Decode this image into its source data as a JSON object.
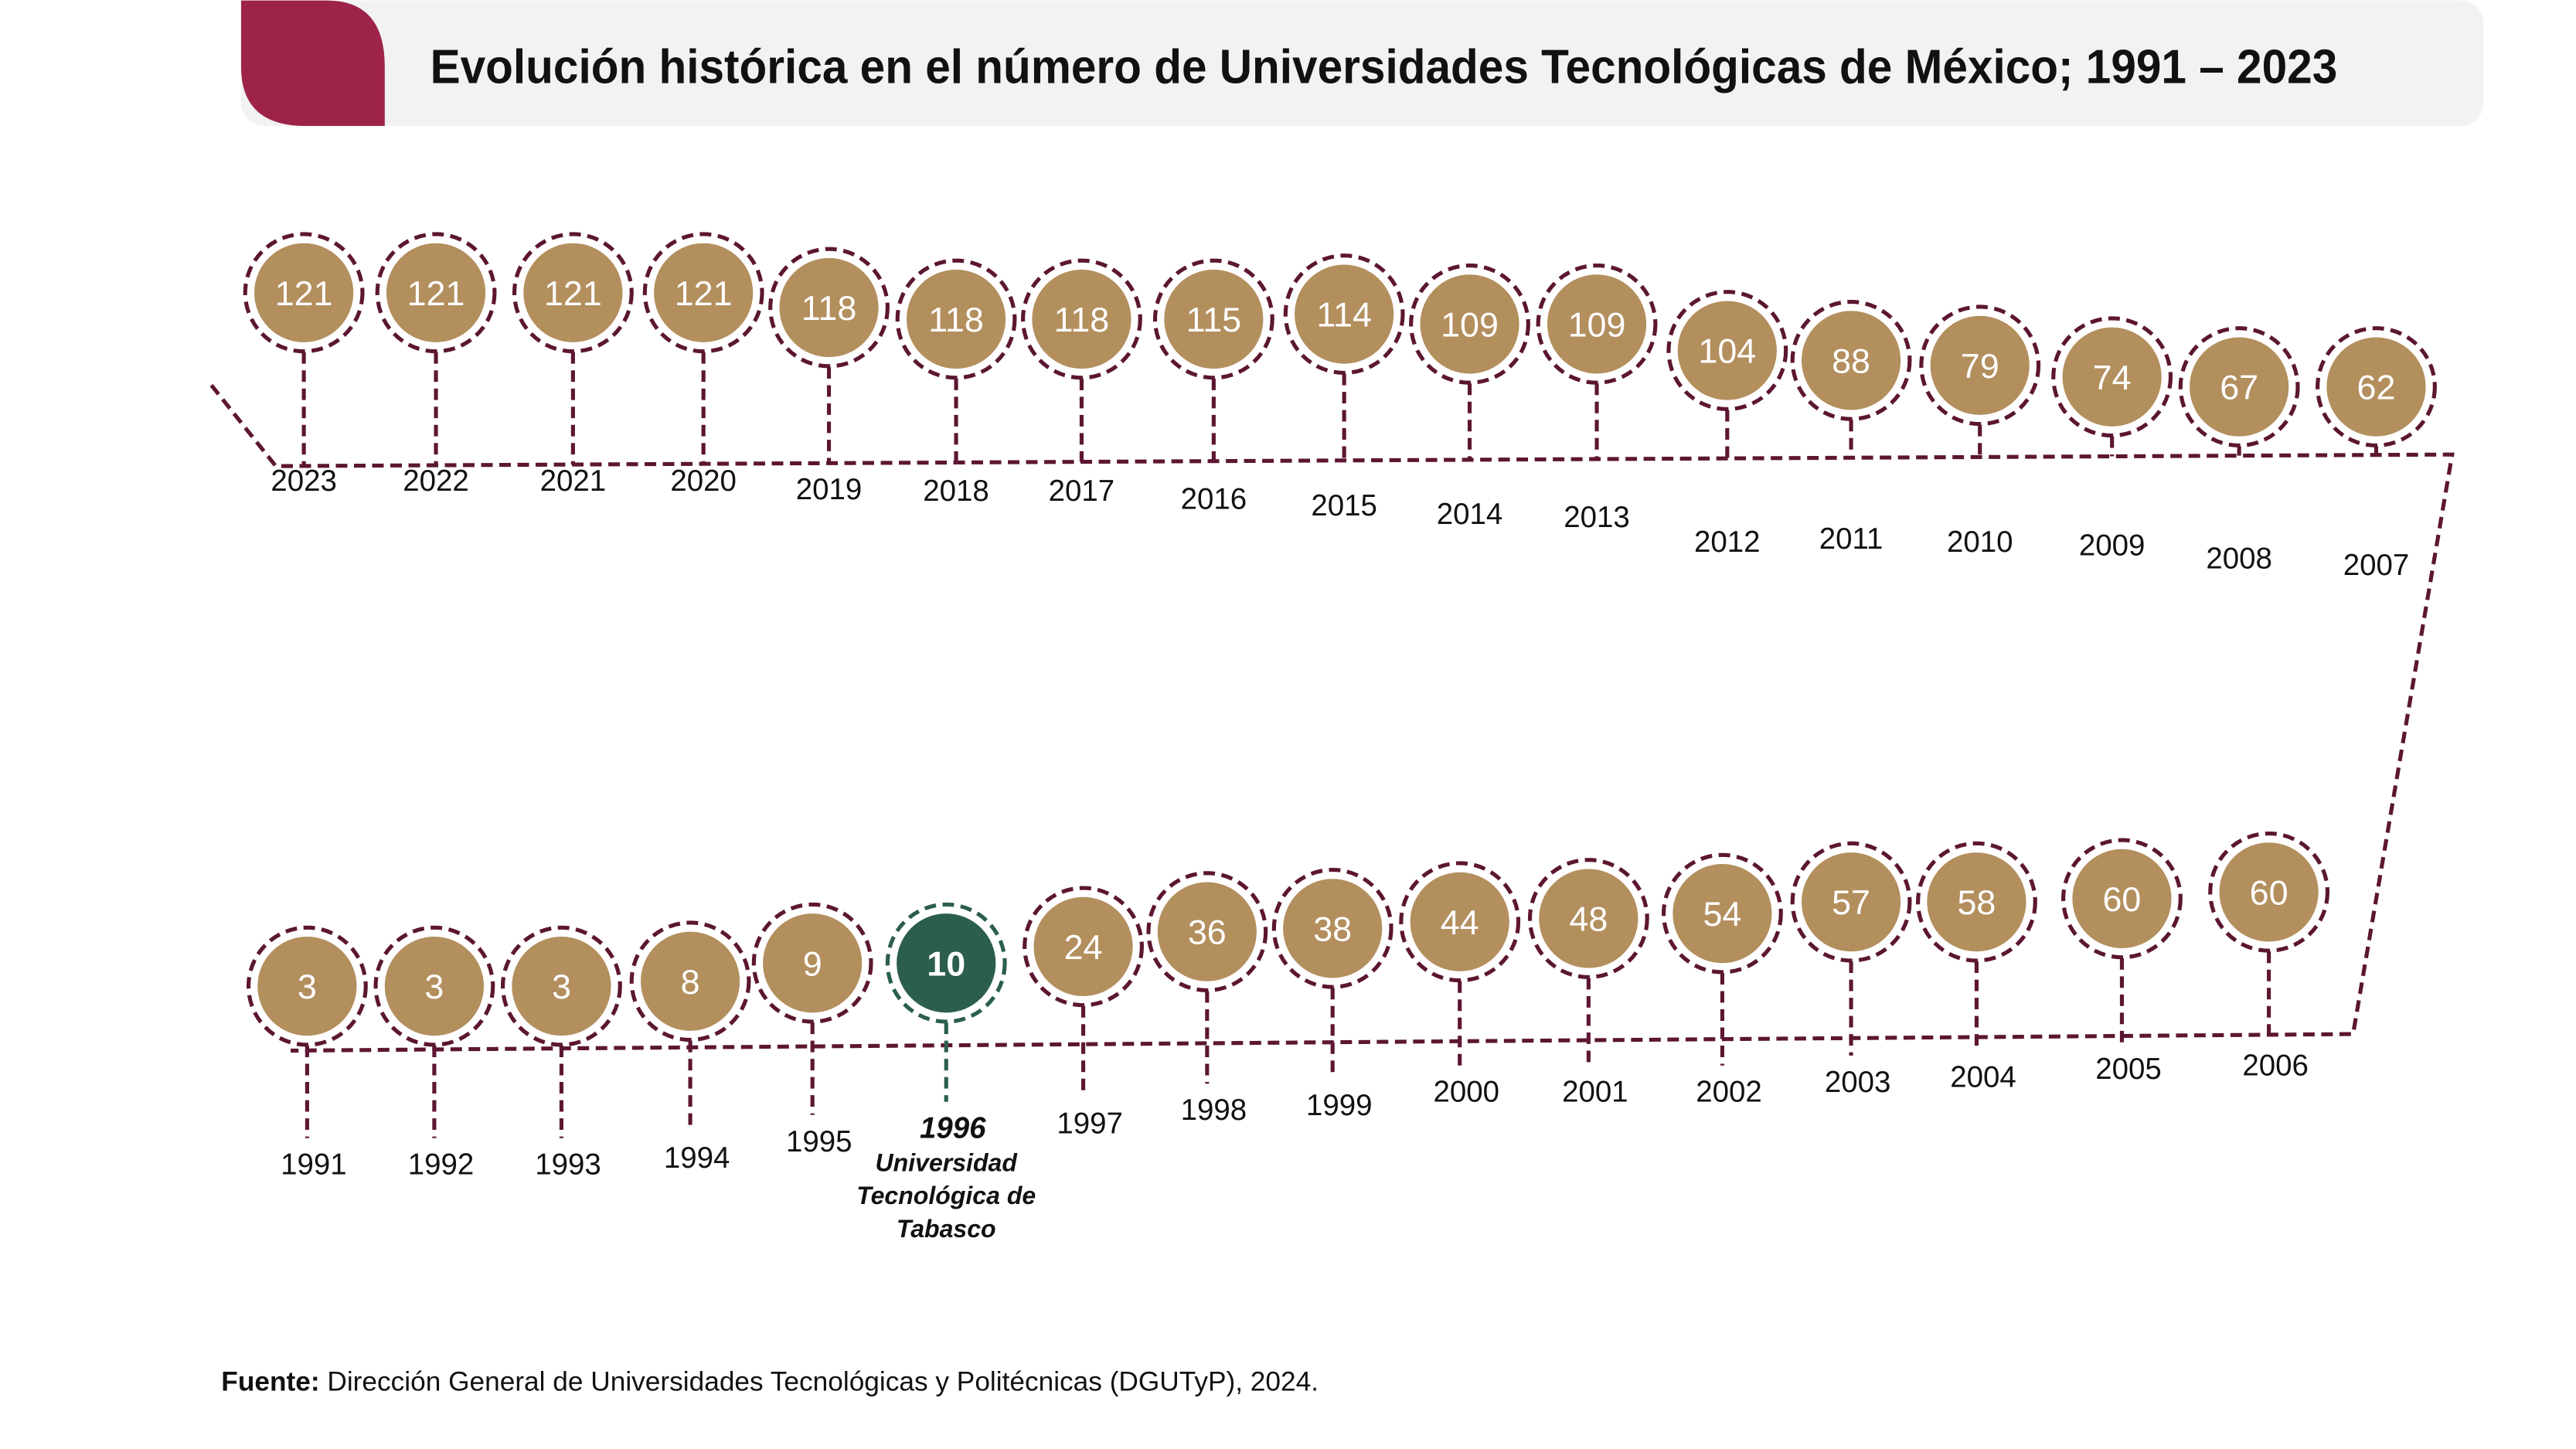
{
  "header": {
    "title": "Evolución histórica en el número de Universidades Tecnológicas de México; 1991 – 2023",
    "accent_color": "#9e2349",
    "bar_color": "#f2f2f2"
  },
  "colors": {
    "bubble": "#b38f5e",
    "line": "#5c1632",
    "highlight": "#2b5e4e"
  },
  "chart_data": {
    "type": "timeline",
    "top_row": [
      {
        "year": "2023",
        "value": 121
      },
      {
        "year": "2022",
        "value": 121
      },
      {
        "year": "2021",
        "value": 121
      },
      {
        "year": "2020",
        "value": 121
      },
      {
        "year": "2019",
        "value": 118
      },
      {
        "year": "2018",
        "value": 118
      },
      {
        "year": "2017",
        "value": 118
      },
      {
        "year": "2016",
        "value": 115
      },
      {
        "year": "2015",
        "value": 114
      },
      {
        "year": "2014",
        "value": 109
      },
      {
        "year": "2013",
        "value": 109
      },
      {
        "year": "2012",
        "value": 104
      },
      {
        "year": "2011",
        "value": 88
      },
      {
        "year": "2010",
        "value": 79
      },
      {
        "year": "2009",
        "value": 74
      },
      {
        "year": "2008",
        "value": 67
      },
      {
        "year": "2007",
        "value": 62
      }
    ],
    "bottom_row": [
      {
        "year": "1991",
        "value": 3
      },
      {
        "year": "1992",
        "value": 3
      },
      {
        "year": "1993",
        "value": 3
      },
      {
        "year": "1994",
        "value": 8
      },
      {
        "year": "1995",
        "value": 9
      },
      {
        "year": "1996",
        "value": 10,
        "highlight": true,
        "note": [
          "Universidad",
          "Tecnológica de",
          "Tabasco"
        ]
      },
      {
        "year": "1997",
        "value": 24
      },
      {
        "year": "1998",
        "value": 36
      },
      {
        "year": "1999",
        "value": 38
      },
      {
        "year": "2000",
        "value": 44
      },
      {
        "year": "2001",
        "value": 48
      },
      {
        "year": "2002",
        "value": 54
      },
      {
        "year": "2003",
        "value": 57
      },
      {
        "year": "2004",
        "value": 58
      },
      {
        "year": "2005",
        "value": 60
      },
      {
        "year": "2006",
        "value": 60
      }
    ]
  },
  "footer": {
    "source_label": "Fuente:",
    "source_text": " Dirección General de Universidades Tecnológicas y Politécnicas (DGUTyP), 2024."
  }
}
